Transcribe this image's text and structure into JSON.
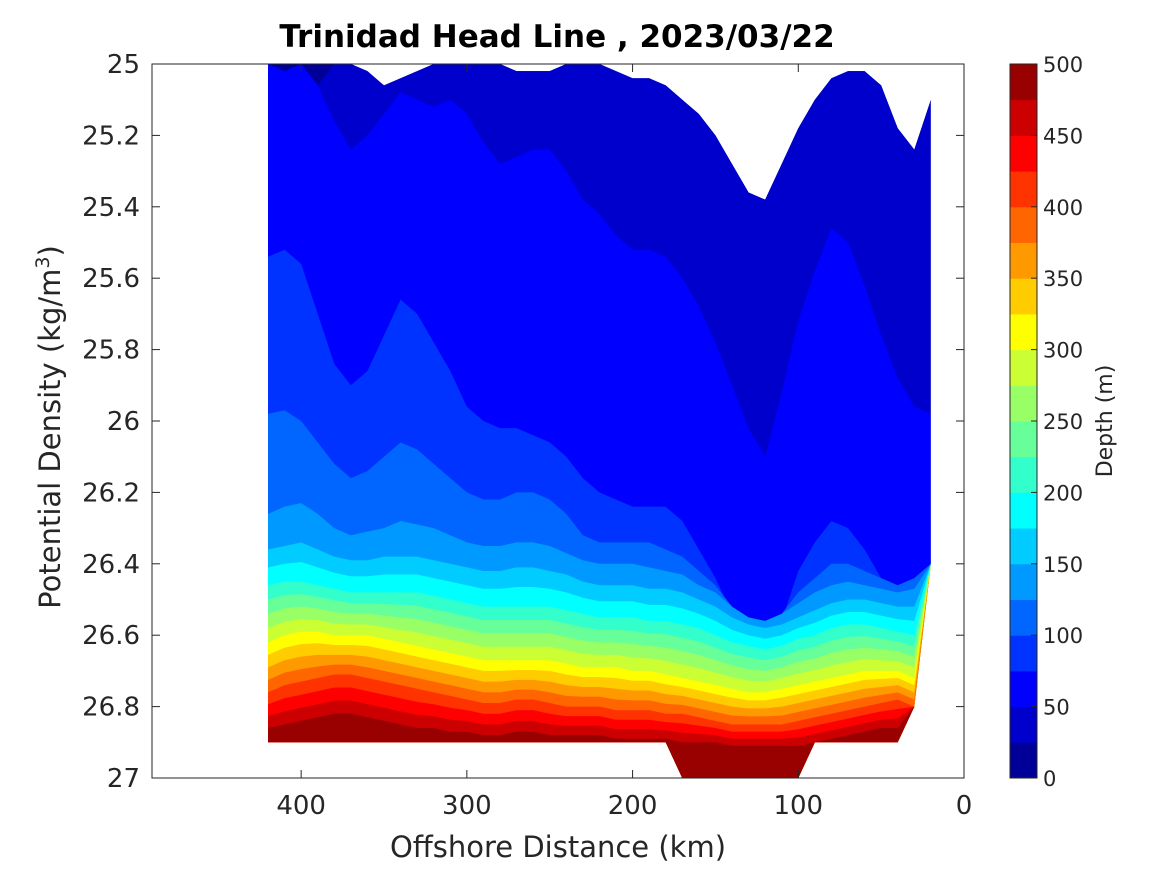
{
  "chart_data": {
    "type": "heatmap",
    "subtype": "filled-contour",
    "title": "Trinidad Head Line , 2023/03/22",
    "xlabel": "Offshore Distance (km)",
    "ylabel": "Potential Density (kg/m",
    "ylabel_sup": "3",
    "ylabel_close": ")",
    "xlim": [
      490,
      0
    ],
    "x_reversed": true,
    "ylim": [
      25,
      27
    ],
    "y_reversed": true,
    "xticks": [
      400,
      300,
      200,
      100,
      0
    ],
    "xtick_labels": [
      "400",
      "300",
      "200",
      "100",
      "0"
    ],
    "yticks": [
      25,
      25.2,
      25.4,
      25.6,
      25.8,
      26,
      26.2,
      26.4,
      26.6,
      26.8,
      27
    ],
    "ytick_labels": [
      "25",
      "25.2",
      "25.4",
      "25.6",
      "25.8",
      "26",
      "26.2",
      "26.4",
      "26.6",
      "26.8",
      "27"
    ],
    "colorbar": {
      "label": "Depth (m)",
      "range": [
        0,
        500
      ],
      "ticks": [
        0,
        50,
        100,
        150,
        200,
        250,
        300,
        350,
        400,
        450,
        500
      ],
      "tick_labels": [
        "0",
        "50",
        "100",
        "150",
        "200",
        "250",
        "300",
        "350",
        "400",
        "450",
        "500"
      ],
      "level_step": 25,
      "colormap": "jet"
    },
    "levels": [
      25,
      50,
      75,
      100,
      125,
      150,
      175,
      200,
      225,
      250,
      275,
      300,
      325,
      350,
      375,
      400,
      425,
      450,
      475
    ],
    "x": [
      420,
      410,
      400,
      390,
      380,
      370,
      360,
      350,
      340,
      330,
      320,
      310,
      300,
      290,
      280,
      270,
      260,
      250,
      240,
      230,
      220,
      210,
      200,
      190,
      180,
      170,
      160,
      150,
      140,
      130,
      120,
      110,
      100,
      90,
      80,
      70,
      60,
      50,
      40,
      30,
      20
    ],
    "x_unit": "km",
    "sigma_at_25m": [
      null,
      null,
      null,
      null,
      25.0,
      25.0,
      25.02,
      25.06,
      25.04,
      25.02,
      25.0,
      25.0,
      25.0,
      25.0,
      25.0,
      25.02,
      25.02,
      25.02,
      25.0,
      25.0,
      25.0,
      25.02,
      25.04,
      25.04,
      25.06,
      25.1,
      25.14,
      25.2,
      25.28,
      25.36,
      25.38,
      25.28,
      25.18,
      25.1,
      25.04,
      25.02,
      25.02,
      25.06,
      25.18,
      25.24,
      25.1
    ],
    "sigma_at_50m": [
      25.0,
      25.02,
      25.0,
      25.06,
      25.16,
      25.24,
      25.2,
      25.14,
      25.08,
      25.1,
      25.12,
      25.1,
      25.14,
      25.22,
      25.28,
      25.26,
      25.24,
      25.24,
      25.3,
      25.38,
      25.42,
      25.48,
      25.52,
      25.52,
      25.54,
      25.6,
      25.68,
      25.78,
      25.9,
      26.02,
      26.1,
      25.92,
      25.72,
      25.58,
      25.46,
      25.5,
      25.62,
      25.76,
      25.88,
      25.96,
      25.98
    ],
    "sigma_at_75m": [
      25.54,
      25.52,
      25.56,
      25.7,
      25.84,
      25.9,
      25.86,
      25.76,
      25.66,
      25.7,
      25.78,
      25.86,
      25.96,
      26.0,
      26.02,
      26.02,
      26.04,
      26.06,
      26.1,
      26.16,
      26.2,
      26.22,
      26.24,
      26.24,
      26.24,
      26.28,
      26.36,
      26.44,
      26.54,
      26.62,
      26.66,
      26.56,
      26.42,
      26.34,
      26.28,
      26.3,
      26.36,
      26.44,
      26.48,
      26.46,
      26.44
    ],
    "sigma_at_100m": [
      25.98,
      25.97,
      26.0,
      26.06,
      26.12,
      26.16,
      26.14,
      26.1,
      26.06,
      26.08,
      26.12,
      26.16,
      26.2,
      26.22,
      26.22,
      26.2,
      26.2,
      26.22,
      26.26,
      26.32,
      26.34,
      26.34,
      26.34,
      26.34,
      26.36,
      26.38,
      26.42,
      26.46,
      26.52,
      26.56,
      26.58,
      26.54,
      26.48,
      26.44,
      26.4,
      26.4,
      26.42,
      26.44,
      26.46,
      26.44,
      26.44
    ],
    "sigma_at_125m": [
      26.26,
      26.24,
      26.23,
      26.26,
      26.3,
      26.32,
      26.31,
      26.3,
      26.28,
      26.29,
      26.3,
      26.32,
      26.34,
      26.35,
      26.35,
      26.34,
      26.34,
      26.35,
      26.37,
      26.39,
      26.4,
      26.4,
      26.4,
      26.41,
      26.42,
      26.43,
      26.46,
      26.48,
      26.52,
      26.55,
      26.56,
      26.54,
      26.51,
      26.48,
      26.46,
      26.45,
      26.46,
      26.47,
      26.48,
      26.47,
      26.47
    ],
    "sigma_at_150m": [
      26.36,
      26.35,
      26.34,
      26.36,
      26.38,
      26.39,
      26.39,
      26.38,
      26.38,
      26.38,
      26.39,
      26.4,
      26.41,
      26.42,
      26.42,
      26.41,
      26.41,
      26.42,
      26.43,
      26.45,
      26.46,
      26.46,
      26.46,
      26.47,
      26.47,
      26.48,
      26.5,
      26.52,
      26.55,
      26.57,
      26.58,
      26.57,
      26.55,
      26.53,
      26.51,
      26.5,
      26.5,
      26.51,
      26.52,
      26.52,
      26.52
    ],
    "sigma_at_200m": [
      26.46,
      26.45,
      26.45,
      26.46,
      26.47,
      26.48,
      26.48,
      26.48,
      26.48,
      26.48,
      26.49,
      26.5,
      26.51,
      26.52,
      26.52,
      26.52,
      26.52,
      26.52,
      26.53,
      26.54,
      26.55,
      26.55,
      26.55,
      26.56,
      26.56,
      26.57,
      26.58,
      26.6,
      26.62,
      26.63,
      26.64,
      26.63,
      26.61,
      26.6,
      26.58,
      26.57,
      26.57,
      26.58,
      26.59,
      26.6,
      26.6
    ],
    "sigma_at_300m": [
      26.62,
      26.6,
      26.59,
      26.59,
      26.6,
      26.6,
      26.6,
      26.61,
      26.62,
      26.63,
      26.64,
      26.65,
      26.66,
      26.67,
      26.67,
      26.67,
      26.67,
      26.67,
      26.68,
      26.69,
      26.69,
      26.69,
      26.7,
      26.7,
      26.71,
      26.72,
      26.73,
      26.74,
      26.75,
      26.76,
      26.76,
      26.75,
      26.74,
      26.73,
      26.72,
      26.71,
      26.7,
      26.7,
      26.7,
      26.72,
      26.72
    ],
    "sigma_at_400m": [
      26.76,
      26.74,
      26.73,
      26.72,
      26.71,
      26.71,
      26.72,
      26.73,
      26.74,
      26.75,
      26.76,
      26.77,
      26.78,
      26.79,
      26.79,
      26.78,
      26.78,
      26.79,
      26.8,
      26.8,
      26.8,
      26.81,
      26.81,
      26.81,
      26.82,
      26.82,
      26.83,
      26.84,
      26.85,
      26.85,
      26.85,
      26.85,
      26.84,
      26.83,
      26.82,
      26.81,
      26.8,
      26.79,
      26.78,
      26.8,
      26.8
    ],
    "sigma_at_475m": [
      26.86,
      26.85,
      26.84,
      26.83,
      26.82,
      26.82,
      26.83,
      26.84,
      26.85,
      26.86,
      26.86,
      26.87,
      26.87,
      26.88,
      26.88,
      26.87,
      26.87,
      26.88,
      26.88,
      26.88,
      26.88,
      26.89,
      26.89,
      26.89,
      26.89,
      26.9,
      26.9,
      26.9,
      26.91,
      26.91,
      26.91,
      26.91,
      26.91,
      26.9,
      26.89,
      26.88,
      26.87,
      26.86,
      26.86,
      26.86,
      26.86
    ],
    "max_sigma": [
      26.9,
      26.9,
      26.9,
      26.9,
      26.9,
      26.9,
      26.9,
      26.9,
      26.9,
      26.9,
      26.9,
      26.9,
      26.9,
      26.9,
      26.9,
      26.9,
      26.9,
      26.9,
      26.9,
      26.9,
      26.9,
      26.9,
      26.9,
      26.9,
      26.9,
      27.0,
      27.0,
      27.0,
      27.0,
      27.0,
      27.0,
      27.0,
      27.0,
      26.9,
      26.9,
      26.9,
      26.9,
      26.9,
      26.9,
      26.8,
      26.4
    ]
  }
}
